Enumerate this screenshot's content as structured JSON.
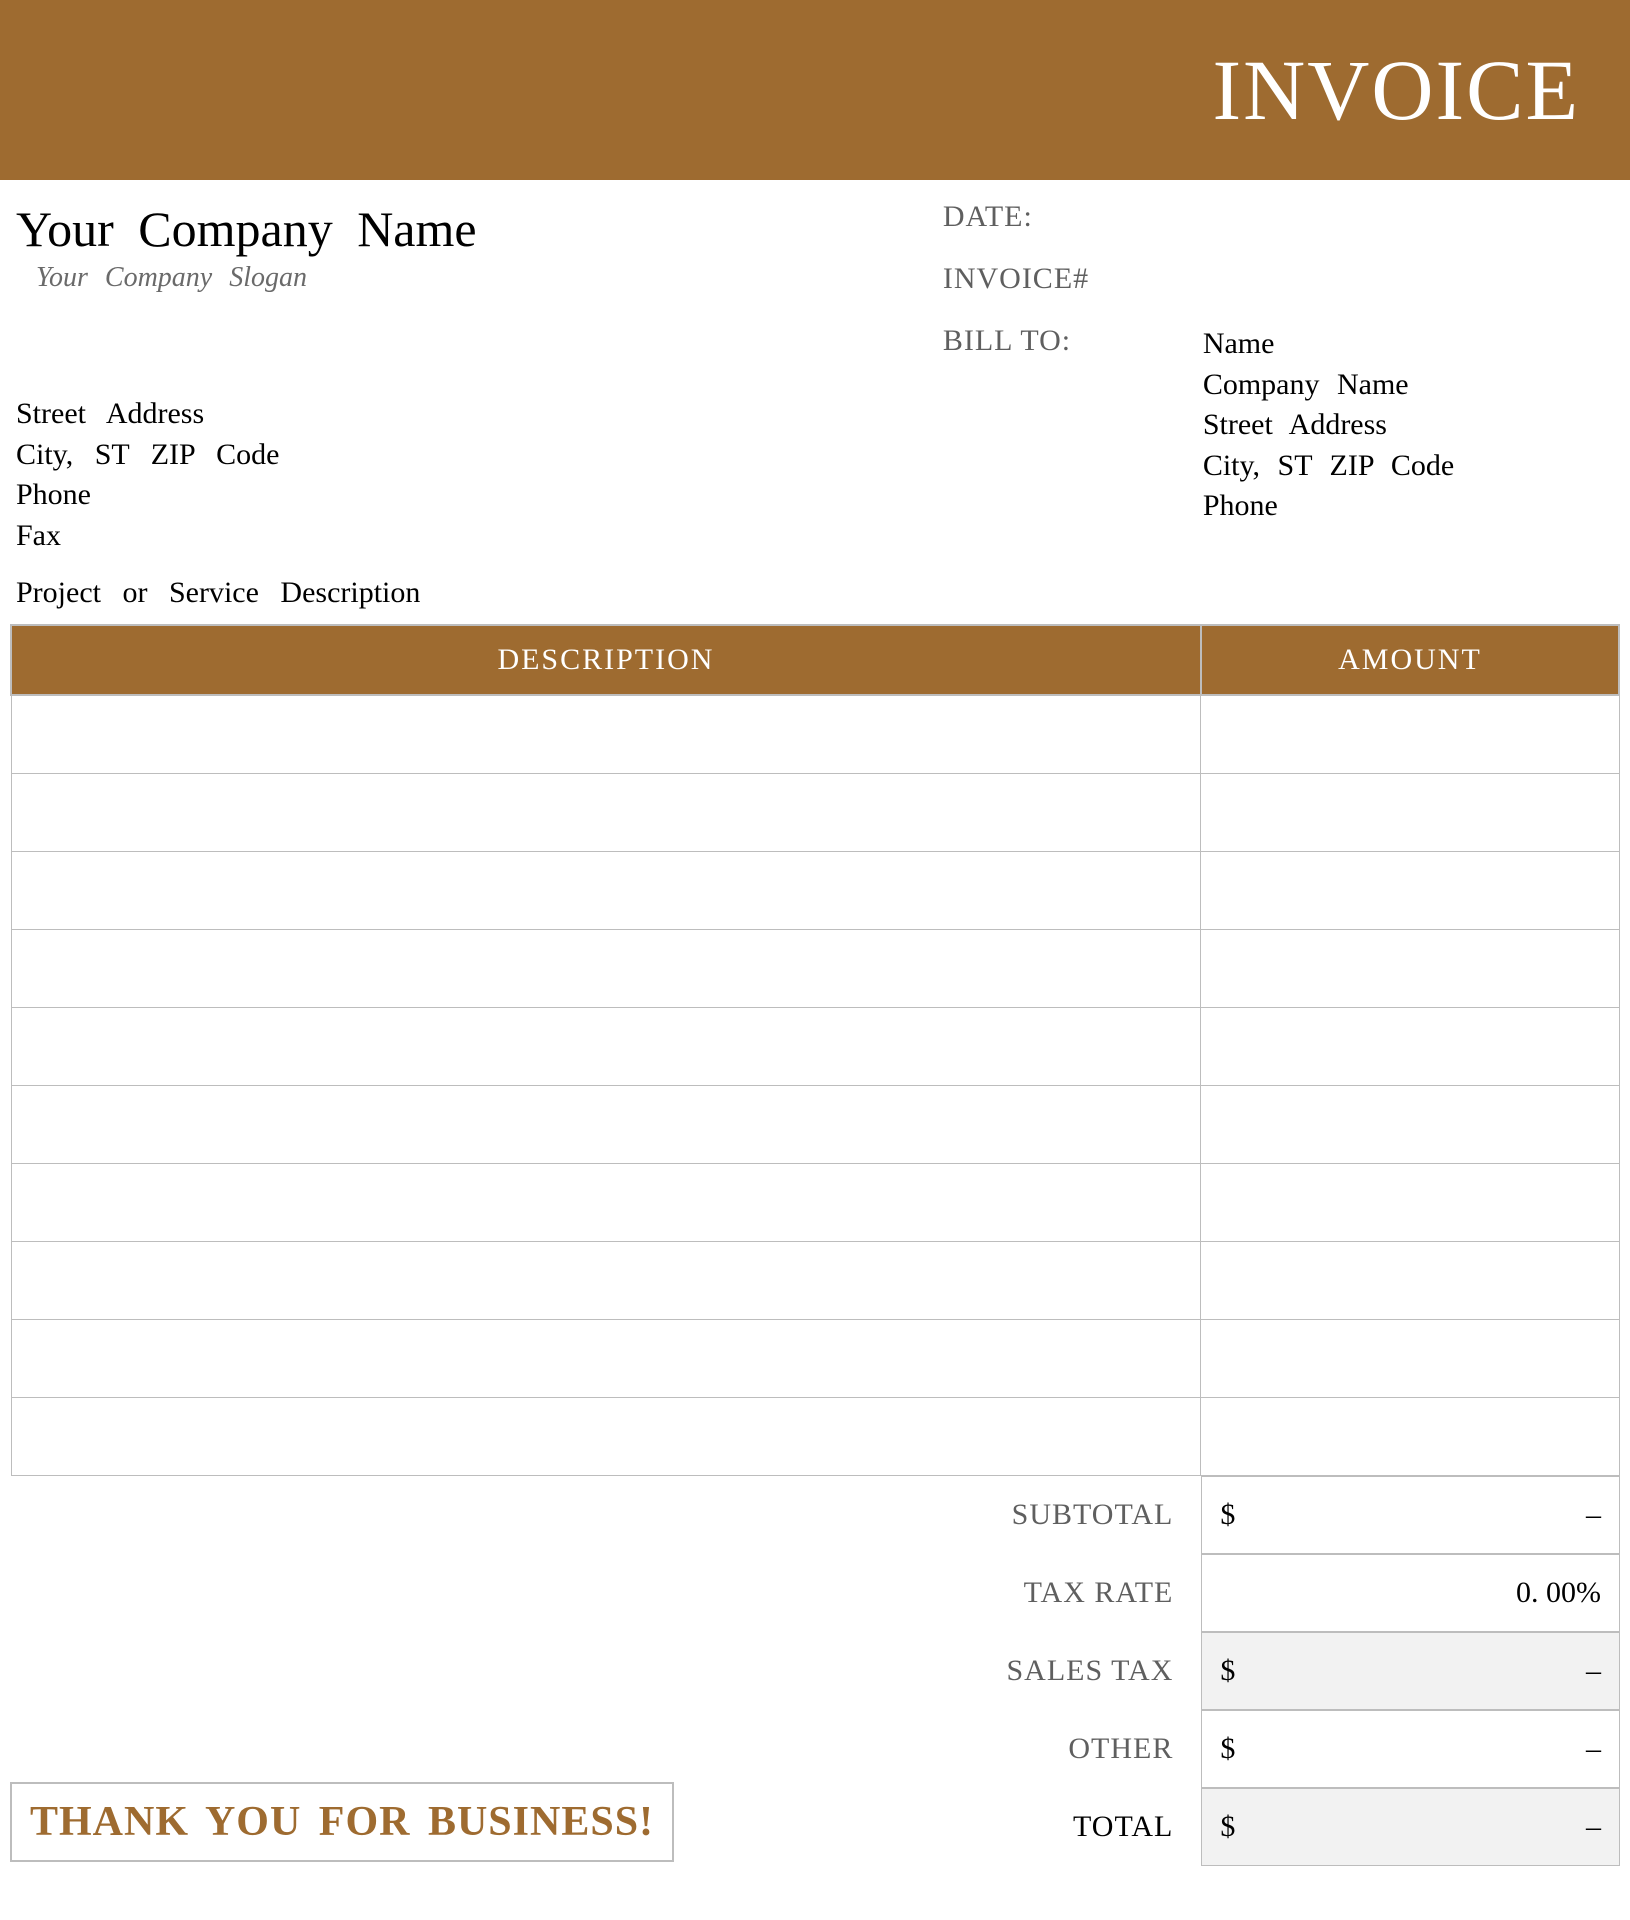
{
  "colors": {
    "accent": "#9e6b30",
    "border": "#bdbdbd",
    "muted_text": "#5f5f5f",
    "shaded_cell": "#f2f2f2",
    "background": "#ffffff",
    "banner_text": "#ffffff"
  },
  "banner": {
    "title": "INVOICE"
  },
  "company": {
    "name": "Your   Company Name",
    "slogan": "Your   Company Slogan",
    "address": [
      "Street    Address",
      "City,    ST   ZIP  Code",
      "Phone",
      "Fax"
    ]
  },
  "project_description_label": "Project    or  Service    Description",
  "meta": {
    "date_label": "DATE:",
    "date_value": "",
    "invoice_no_label": "INVOICE#",
    "invoice_no_value": "",
    "bill_to_label": "BILL  TO:",
    "bill_to": [
      "Name",
      "Company Name",
      "Street    Address",
      "City,    ST   ZIP  Code",
      "Phone"
    ]
  },
  "line_items": {
    "headers": {
      "description": "DESCRIPTION",
      "amount": "AMOUNT"
    },
    "row_count": 10,
    "rows": [
      {
        "description": "",
        "amount": ""
      },
      {
        "description": "",
        "amount": ""
      },
      {
        "description": "",
        "amount": ""
      },
      {
        "description": "",
        "amount": ""
      },
      {
        "description": "",
        "amount": ""
      },
      {
        "description": "",
        "amount": ""
      },
      {
        "description": "",
        "amount": ""
      },
      {
        "description": "",
        "amount": ""
      },
      {
        "description": "",
        "amount": ""
      },
      {
        "description": "",
        "amount": ""
      }
    ]
  },
  "totals": {
    "currency_symbol": "$",
    "dash": "–",
    "subtotal": {
      "label": "SUBTOTAL",
      "value": "–",
      "shaded": false
    },
    "tax_rate": {
      "label": "TAX RATE",
      "value": "0. 00%",
      "shaded": false
    },
    "sales_tax": {
      "label": "SALES TAX",
      "value": "–",
      "shaded": true
    },
    "other": {
      "label": "OTHER",
      "value": "–",
      "shaded": false
    },
    "total": {
      "label": "TOTAL",
      "value": "–",
      "shaded": true
    }
  },
  "thank_you": "THANK YOU FOR BUSINESS!"
}
